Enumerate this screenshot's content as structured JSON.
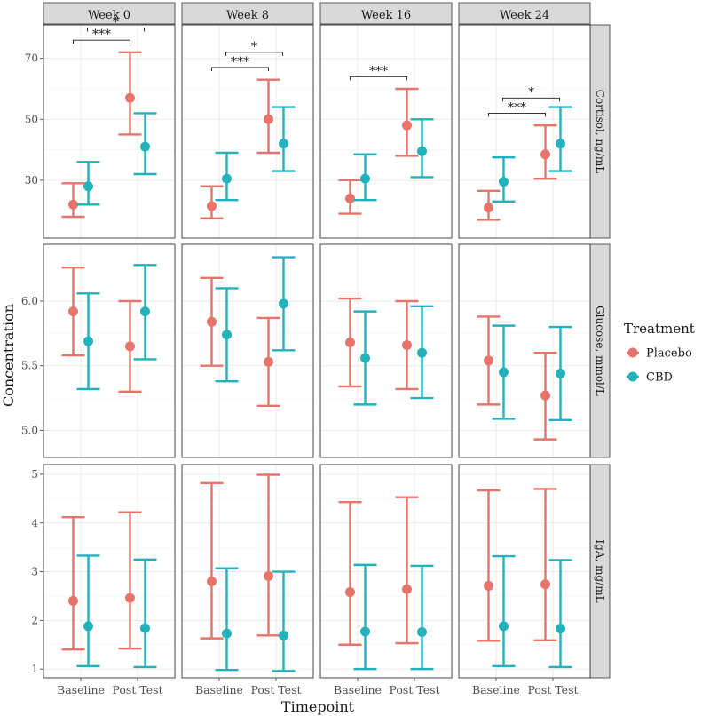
{
  "chart_data": {
    "type": "error-bar-facet",
    "xlabel": "Timepoint",
    "ylabel": "Concentration",
    "legend": {
      "title": "Treatment",
      "placement": "right",
      "entries": [
        {
          "name": "Placebo",
          "color": "#E8736B"
        },
        {
          "name": "CBD",
          "color": "#22B2BB"
        }
      ]
    },
    "columns": [
      "Week 0",
      "Week 8",
      "Week 16",
      "Week 24"
    ],
    "timepoints": [
      "Baseline",
      "Post Test"
    ],
    "rows": [
      {
        "label": "Cortisol, ng/mL",
        "ylim": [
          11,
          81
        ],
        "ticks": [
          30,
          50,
          70
        ],
        "tick_labels": [
          "30",
          "50",
          "70"
        ],
        "panels": [
          {
            "series": {
              "Placebo": [
                {
                  "mean": 22,
                  "low": 18,
                  "high": 29
                },
                {
                  "mean": 57,
                  "low": 45,
                  "high": 72
                }
              ],
              "CBD": [
                {
                  "mean": 28,
                  "low": 22,
                  "high": 36
                },
                {
                  "mean": 41,
                  "low": 32,
                  "high": 52
                }
              ]
            },
            "annotations": [
              {
                "label": "***",
                "from": 0,
                "to": 1,
                "level": 76
              },
              {
                "label": "*",
                "from": 0.25,
                "to": 1.25,
                "level": 80
              }
            ]
          },
          {
            "series": {
              "Placebo": [
                {
                  "mean": 21.5,
                  "low": 17.5,
                  "high": 28
                },
                {
                  "mean": 50,
                  "low": 39,
                  "high": 63
                }
              ],
              "CBD": [
                {
                  "mean": 30.5,
                  "low": 23.5,
                  "high": 39
                },
                {
                  "mean": 42,
                  "low": 33,
                  "high": 54
                }
              ]
            },
            "annotations": [
              {
                "label": "***",
                "from": 0,
                "to": 1,
                "level": 67
              },
              {
                "label": "*",
                "from": 0.25,
                "to": 1.25,
                "level": 72
              }
            ]
          },
          {
            "series": {
              "Placebo": [
                {
                  "mean": 24,
                  "low": 19,
                  "high": 30
                },
                {
                  "mean": 48,
                  "low": 38,
                  "high": 60
                }
              ],
              "CBD": [
                {
                  "mean": 30.5,
                  "low": 23.5,
                  "high": 38.5
                },
                {
                  "mean": 39.5,
                  "low": 31,
                  "high": 50
                }
              ]
            },
            "annotations": [
              {
                "label": "***",
                "from": 0,
                "to": 1,
                "level": 64
              }
            ]
          },
          {
            "series": {
              "Placebo": [
                {
                  "mean": 21,
                  "low": 17,
                  "high": 26.5
                },
                {
                  "mean": 38.5,
                  "low": 30.5,
                  "high": 48
                }
              ],
              "CBD": [
                {
                  "mean": 29.5,
                  "low": 23,
                  "high": 37.5
                },
                {
                  "mean": 42,
                  "low": 33,
                  "high": 54
                }
              ]
            },
            "annotations": [
              {
                "label": "***",
                "from": 0,
                "to": 1,
                "level": 52
              },
              {
                "label": "*",
                "from": 0.25,
                "to": 1.25,
                "level": 57
              }
            ]
          }
        ]
      },
      {
        "label": "Glucose, mmol/L",
        "ylim": [
          4.79,
          6.44
        ],
        "ticks": [
          5.0,
          5.5,
          6.0
        ],
        "tick_labels": [
          "5.0",
          "5.5",
          "6.0"
        ],
        "panels": [
          {
            "series": {
              "Placebo": [
                {
                  "mean": 5.92,
                  "low": 5.58,
                  "high": 6.26
                },
                {
                  "mean": 5.65,
                  "low": 5.3,
                  "high": 6.0
                }
              ],
              "CBD": [
                {
                  "mean": 5.69,
                  "low": 5.32,
                  "high": 6.06
                },
                {
                  "mean": 5.92,
                  "low": 5.55,
                  "high": 6.28
                }
              ]
            },
            "annotations": []
          },
          {
            "series": {
              "Placebo": [
                {
                  "mean": 5.84,
                  "low": 5.5,
                  "high": 6.18
                },
                {
                  "mean": 5.53,
                  "low": 5.19,
                  "high": 5.87
                }
              ],
              "CBD": [
                {
                  "mean": 5.74,
                  "low": 5.38,
                  "high": 6.1
                },
                {
                  "mean": 5.98,
                  "low": 5.62,
                  "high": 6.34
                }
              ]
            },
            "annotations": []
          },
          {
            "series": {
              "Placebo": [
                {
                  "mean": 5.68,
                  "low": 5.34,
                  "high": 6.02
                },
                {
                  "mean": 5.66,
                  "low": 5.32,
                  "high": 6.0
                }
              ],
              "CBD": [
                {
                  "mean": 5.56,
                  "low": 5.2,
                  "high": 5.92
                },
                {
                  "mean": 5.6,
                  "low": 5.25,
                  "high": 5.96
                }
              ]
            },
            "annotations": []
          },
          {
            "series": {
              "Placebo": [
                {
                  "mean": 5.54,
                  "low": 5.2,
                  "high": 5.88
                },
                {
                  "mean": 5.27,
                  "low": 4.93,
                  "high": 5.6
                }
              ],
              "CBD": [
                {
                  "mean": 5.45,
                  "low": 5.09,
                  "high": 5.81
                },
                {
                  "mean": 5.44,
                  "low": 5.08,
                  "high": 5.8
                }
              ]
            },
            "annotations": []
          }
        ]
      },
      {
        "label": "IgA, mg/mL",
        "ylim": [
          0.82,
          5.2
        ],
        "ticks": [
          1,
          2,
          3,
          4,
          5
        ],
        "tick_labels": [
          "1",
          "2",
          "3",
          "4",
          "5"
        ],
        "panels": [
          {
            "series": {
              "Placebo": [
                {
                  "mean": 2.4,
                  "low": 1.4,
                  "high": 4.12
                },
                {
                  "mean": 2.46,
                  "low": 1.42,
                  "high": 4.22
                }
              ],
              "CBD": [
                {
                  "mean": 1.88,
                  "low": 1.06,
                  "high": 3.33
                },
                {
                  "mean": 1.84,
                  "low": 1.04,
                  "high": 3.25
                }
              ]
            },
            "annotations": []
          },
          {
            "series": {
              "Placebo": [
                {
                  "mean": 2.8,
                  "low": 1.63,
                  "high": 4.82
                },
                {
                  "mean": 2.91,
                  "low": 1.69,
                  "high": 4.99
                }
              ],
              "CBD": [
                {
                  "mean": 1.73,
                  "low": 0.98,
                  "high": 3.07
                },
                {
                  "mean": 1.69,
                  "low": 0.96,
                  "high": 3.0
                }
              ]
            },
            "annotations": []
          },
          {
            "series": {
              "Placebo": [
                {
                  "mean": 2.58,
                  "low": 1.5,
                  "high": 4.43
                },
                {
                  "mean": 2.64,
                  "low": 1.53,
                  "high": 4.53
                }
              ],
              "CBD": [
                {
                  "mean": 1.77,
                  "low": 1.0,
                  "high": 3.14
                },
                {
                  "mean": 1.76,
                  "low": 1.0,
                  "high": 3.12
                }
              ]
            },
            "annotations": []
          },
          {
            "series": {
              "Placebo": [
                {
                  "mean": 2.71,
                  "low": 1.58,
                  "high": 4.67
                },
                {
                  "mean": 2.74,
                  "low": 1.59,
                  "high": 4.7
                }
              ],
              "CBD": [
                {
                  "mean": 1.88,
                  "low": 1.06,
                  "high": 3.32
                },
                {
                  "mean": 1.83,
                  "low": 1.04,
                  "high": 3.24
                }
              ]
            },
            "annotations": []
          }
        ]
      }
    ]
  }
}
